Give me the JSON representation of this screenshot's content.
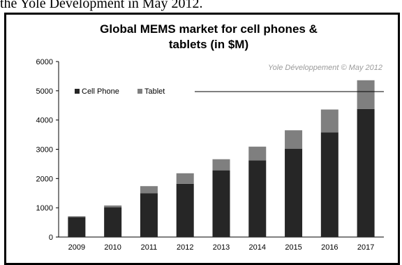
{
  "caption": "the Yole Development in May 2012.",
  "chart_data": {
    "type": "bar",
    "stacked": true,
    "title_lines": [
      "Global MEMS market for cell phones &",
      "tablets (in $M)"
    ],
    "watermark": "Yole Développement  © May 2012",
    "categories": [
      "2009",
      "2010",
      "2011",
      "2012",
      "2013",
      "2014",
      "2015",
      "2016",
      "2017"
    ],
    "series": [
      {
        "name": "Cell Phone",
        "color": "#262626",
        "values": [
          680,
          1020,
          1500,
          1820,
          2280,
          2620,
          3020,
          3580,
          4380
        ]
      },
      {
        "name": "Tablet",
        "color": "#7f7f7f",
        "values": [
          30,
          60,
          240,
          360,
          380,
          470,
          630,
          780,
          980
        ]
      }
    ],
    "ylim": [
      0,
      6000
    ],
    "yticks": [
      "0",
      "1000",
      "2000",
      "3000",
      "4000",
      "5000",
      "6000"
    ],
    "legend_position": "top-left",
    "grid": false
  }
}
